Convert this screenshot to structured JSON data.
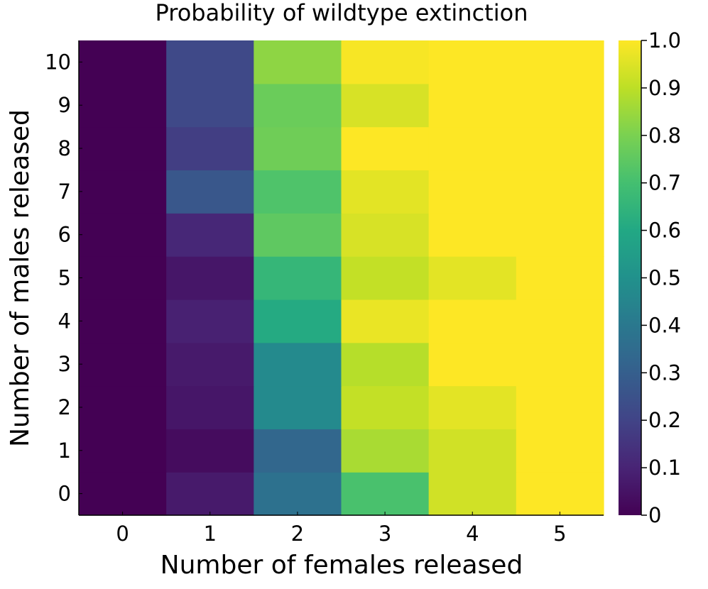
{
  "chart_data": {
    "type": "heatmap",
    "title": "Probability of wildtype extinction",
    "xlabel": "Number of females released",
    "ylabel": "Number of males released",
    "x": [
      0,
      1,
      2,
      3,
      4,
      5
    ],
    "y": [
      0,
      1,
      2,
      3,
      4,
      5,
      6,
      7,
      8,
      9,
      10
    ],
    "z": [
      [
        0.0,
        0.07,
        0.37,
        0.71,
        0.93,
        1.0
      ],
      [
        0.0,
        0.03,
        0.33,
        0.87,
        0.93,
        1.0
      ],
      [
        0.0,
        0.06,
        0.47,
        0.91,
        0.96,
        1.0
      ],
      [
        0.0,
        0.07,
        0.47,
        0.89,
        1.0,
        1.0
      ],
      [
        0.0,
        0.09,
        0.61,
        0.97,
        1.0,
        1.0
      ],
      [
        0.0,
        0.06,
        0.66,
        0.91,
        0.96,
        1.0
      ],
      [
        0.0,
        0.11,
        0.75,
        0.94,
        1.0,
        1.0
      ],
      [
        0.0,
        0.27,
        0.72,
        0.96,
        1.0,
        1.0
      ],
      [
        0.0,
        0.18,
        0.78,
        1.0,
        1.0,
        1.0
      ],
      [
        0.0,
        0.22,
        0.77,
        0.94,
        1.0,
        1.0
      ],
      [
        0.0,
        0.22,
        0.83,
        0.99,
        1.0,
        1.0
      ]
    ],
    "zlim": [
      0,
      1
    ],
    "colormap": "viridis",
    "colorbar_ticks": [
      "0",
      "0.1",
      "0.2",
      "0.3",
      "0.4",
      "0.5",
      "0.6",
      "0.7",
      "0.8",
      "0.9",
      "1.0"
    ],
    "grid": false
  }
}
